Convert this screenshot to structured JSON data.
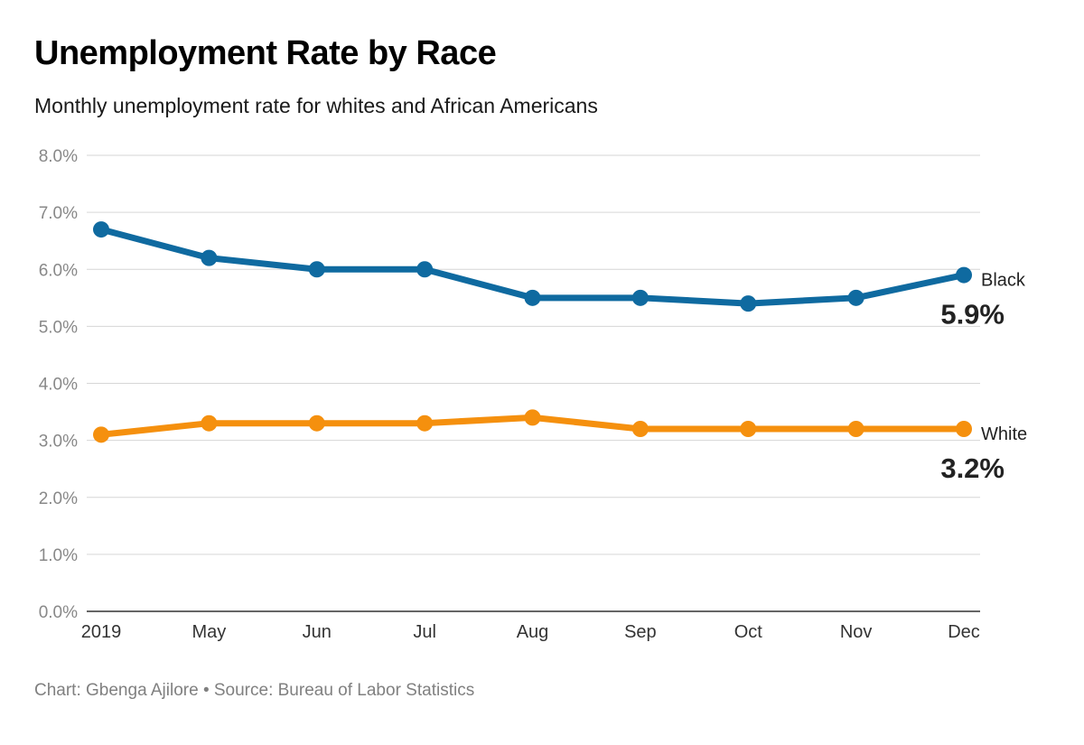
{
  "chart_data": {
    "type": "line",
    "title": "Unemployment Rate by Race",
    "subtitle": "Monthly unemployment rate for whites and African Americans",
    "source": "Chart: Gbenga Ajilore • Source: Bureau of Labor Statistics",
    "categories": [
      "2019",
      "May",
      "Jun",
      "Jul",
      "Aug",
      "Sep",
      "Oct",
      "Nov",
      "Dec"
    ],
    "ylim": [
      0,
      8
    ],
    "yticks": [
      0,
      1,
      2,
      3,
      4,
      5,
      6,
      7,
      8
    ],
    "ytick_labels": [
      "0.0%",
      "1.0%",
      "2.0%",
      "3.0%",
      "4.0%",
      "5.0%",
      "6.0%",
      "7.0%",
      "8.0%"
    ],
    "grid": true,
    "series": [
      {
        "name": "Black",
        "color": "#0f6aa0",
        "values": [
          6.7,
          6.2,
          6.0,
          6.0,
          5.5,
          5.5,
          5.4,
          5.5,
          5.9
        ],
        "end_label": "5.9%"
      },
      {
        "name": "White",
        "color": "#f5900e",
        "values": [
          3.1,
          3.3,
          3.3,
          3.3,
          3.4,
          3.2,
          3.2,
          3.2,
          3.2
        ],
        "end_label": "3.2%"
      }
    ]
  }
}
